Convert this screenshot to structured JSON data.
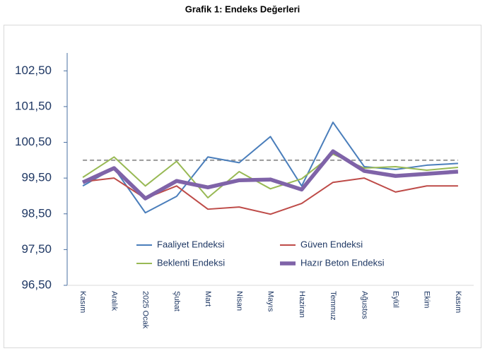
{
  "chart_data": {
    "type": "line",
    "title": "Grafik 1: Endeks Değerleri",
    "categories": [
      "Kasım",
      "Aralık",
      "2025 Ocak",
      "Şubat",
      "Mart",
      "Nisan",
      "Mayıs",
      "Haziran",
      "Temmuz",
      "Ağustos",
      "Eylül",
      "Ekim",
      "Kasım"
    ],
    "series": [
      {
        "name": "Faaliyet Endeksi",
        "color": "#4a7ebb",
        "values": [
          99.28,
          99.78,
          98.53,
          98.99,
          100.09,
          99.93,
          100.66,
          99.28,
          101.06,
          99.82,
          99.74,
          99.86,
          99.91
        ]
      },
      {
        "name": "Güven Endeksi",
        "color": "#be4b48",
        "values": [
          99.4,
          99.5,
          98.93,
          99.28,
          98.63,
          98.69,
          98.49,
          98.79,
          99.38,
          99.5,
          99.11,
          99.28,
          99.28
        ]
      },
      {
        "name": "Beklenti Endeksi",
        "color": "#98b954",
        "values": [
          99.52,
          100.09,
          99.28,
          99.97,
          98.95,
          99.68,
          99.2,
          99.48,
          100.17,
          99.78,
          99.82,
          99.72,
          99.8
        ]
      },
      {
        "name": "Hazır Beton Endeksi",
        "color": "#7f63a8",
        "values": [
          99.38,
          99.78,
          98.93,
          99.42,
          99.24,
          99.44,
          99.46,
          99.18,
          100.25,
          99.7,
          99.56,
          99.62,
          99.68
        ]
      }
    ],
    "reference_value": 100,
    "ylim": [
      96.5,
      103
    ],
    "yticks": [
      {
        "value": 96.5,
        "label": "96,50"
      },
      {
        "value": 97.5,
        "label": "97,50"
      },
      {
        "value": 98.5,
        "label": "98,50"
      },
      {
        "value": 99.5,
        "label": "99,50"
      },
      {
        "value": 100.5,
        "label": "100,50"
      },
      {
        "value": 101.5,
        "label": "101,50"
      },
      {
        "value": 102.5,
        "label": "102,50"
      }
    ],
    "grid": false
  }
}
